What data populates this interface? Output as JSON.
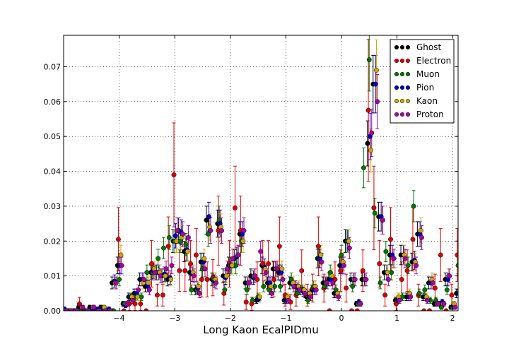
{
  "chart_data": {
    "type": "scatter",
    "title": "",
    "xlabel": "Long Kaon EcalPIDmu",
    "ylabel": "",
    "xlim": [
      -5.0,
      2.1
    ],
    "ylim": [
      0.0,
      0.079
    ],
    "x_ticks": [
      -4,
      -3,
      -2,
      -1,
      0,
      1,
      2
    ],
    "x_tick_labels": [
      "−4",
      "−3",
      "−2",
      "−1",
      "0",
      "1",
      "2"
    ],
    "y_ticks": [
      0.0,
      0.01,
      0.02,
      0.03,
      0.04,
      0.05,
      0.06,
      0.07
    ],
    "y_tick_labels": [
      "0.00",
      "0.01",
      "0.02",
      "0.03",
      "0.04",
      "0.05",
      "0.06",
      "0.07"
    ],
    "grid": true,
    "error_bars": true,
    "legend_position": "top-right",
    "bins_x": [
      -5.0,
      -4.9,
      -4.8,
      -4.7,
      -4.6,
      -4.5,
      -4.4,
      -4.3,
      -4.2,
      -4.1,
      -4.0,
      -3.9,
      -3.8,
      -3.7,
      -3.6,
      -3.5,
      -3.4,
      -3.3,
      -3.2,
      -3.1,
      -3.0,
      -2.9,
      -2.8,
      -2.7,
      -2.6,
      -2.5,
      -2.4,
      -2.3,
      -2.2,
      -2.1,
      -2.0,
      -1.9,
      -1.8,
      -1.7,
      -1.6,
      -1.5,
      -1.4,
      -1.3,
      -1.2,
      -1.1,
      -1.0,
      -0.9,
      -0.8,
      -0.7,
      -0.6,
      -0.5,
      -0.4,
      -0.3,
      -0.2,
      -0.1,
      0.0,
      0.1,
      0.2,
      0.3,
      0.4,
      0.5,
      0.6,
      0.7,
      0.8,
      0.9,
      1.0,
      1.1,
      1.2,
      1.3,
      1.4,
      1.5,
      1.6,
      1.7,
      1.8,
      1.9,
      2.0,
      2.1
    ],
    "series": [
      {
        "name": "Ghost",
        "color": "#000000",
        "offset": -0.03,
        "values": [
          0.001,
          0.0,
          0.0,
          0.001,
          0.0,
          0.001,
          0.0,
          0.001,
          0.0,
          0.008,
          0.013,
          0.002,
          0.004,
          0.005,
          0.009,
          0.007,
          0.011,
          0.011,
          0.01,
          0.009,
          0.02,
          0.023,
          0.017,
          0.011,
          0.006,
          0.014,
          0.026,
          0.009,
          0.025,
          0.01,
          0.013,
          0.015,
          0.022,
          0.008,
          0.01,
          0.003,
          0.013,
          0.008,
          0.012,
          0.011,
          0.003,
          0.008,
          0.007,
          0.006,
          0.004,
          0.006,
          0.015,
          0.008,
          0.009,
          0.005,
          0.013,
          0.02,
          0.009,
          0.002,
          0.009,
          0.048,
          0.065,
          0.027,
          0.011,
          0.016,
          0.003,
          0.016,
          0.004,
          0.014,
          0.022,
          0.004,
          0.008,
          0.002,
          0.002,
          0.009,
          0.001,
          0.005
        ]
      },
      {
        "name": "Electron",
        "color": "#dd0000",
        "offset": -0.015,
        "values": [
          0.0,
          0.0,
          0.0,
          0.002,
          0.0,
          0.0,
          0.0,
          0.0,
          0.0,
          0.0,
          0.0205,
          0.0,
          0.002,
          0.002,
          0.002,
          0.0,
          0.0135,
          0.0045,
          0.0045,
          0.0185,
          0.039,
          0.0115,
          0.0115,
          0.0135,
          0.016,
          0.009,
          0.009,
          0.0095,
          0.023,
          0.005,
          0.0135,
          0.0295,
          0.023,
          0.0025,
          0.002,
          0.009,
          0.0135,
          0.0135,
          0.009,
          0.0185,
          0.0045,
          0.0025,
          0.0045,
          0.0115,
          0.0045,
          0.0065,
          0.0185,
          0.0065,
          0.0,
          0.009,
          0.0115,
          0.0065,
          0.0,
          0.0,
          0.0115,
          0.0575,
          0.0295,
          0.0135,
          0.0045,
          0.0205,
          0.002,
          0.009,
          0.0115,
          0.0205,
          0.0045,
          0.0,
          0.0,
          0.0065,
          0.016,
          0.0,
          0.0045,
          0.016
        ]
      },
      {
        "name": "Muon",
        "color": "#007700",
        "offset": 0.0,
        "values": [
          0.0,
          0.0,
          0.0,
          0.0,
          0.0,
          0.0,
          0.0,
          0.0,
          0.0,
          0.0,
          0.009,
          0.002,
          0.004,
          0.004,
          0.004,
          0.011,
          0.011,
          0.015,
          0.018,
          0.021,
          0.02,
          0.02,
          0.019,
          0.006,
          0.006,
          0.012,
          0.022,
          0.009,
          0.026,
          0.006,
          0.013,
          0.013,
          0.02,
          0.006,
          0.003,
          0.004,
          0.007,
          0.006,
          0.007,
          0.007,
          0.003,
          0.009,
          0.005,
          0.006,
          0.003,
          0.007,
          0.015,
          0.007,
          0.011,
          0.006,
          0.016,
          0.02,
          0.007,
          0.002,
          0.041,
          0.072,
          0.028,
          0.008,
          0.017,
          0.011,
          0.003,
          0.004,
          0.013,
          0.03,
          0.005,
          0.006,
          0.003,
          0.003,
          0.001,
          0.006,
          0.001,
          0.013
        ]
      },
      {
        "name": "Pion",
        "color": "#0000cc",
        "offset": 0.015,
        "values": [
          0.0005,
          0.0,
          0.0,
          0.001,
          0.0,
          0.0005,
          0.0005,
          0.0005,
          0.0005,
          0.0085,
          0.013,
          0.0015,
          0.004,
          0.005,
          0.009,
          0.007,
          0.0115,
          0.011,
          0.0105,
          0.0095,
          0.0215,
          0.0225,
          0.0175,
          0.0105,
          0.0065,
          0.014,
          0.027,
          0.0085,
          0.025,
          0.0095,
          0.013,
          0.0155,
          0.022,
          0.008,
          0.0095,
          0.0035,
          0.0125,
          0.008,
          0.012,
          0.011,
          0.003,
          0.008,
          0.0065,
          0.0055,
          0.0045,
          0.006,
          0.015,
          0.008,
          0.009,
          0.005,
          0.013,
          0.02,
          0.009,
          0.0025,
          0.009,
          0.05,
          0.065,
          0.027,
          0.011,
          0.016,
          0.003,
          0.016,
          0.004,
          0.0145,
          0.022,
          0.004,
          0.008,
          0.002,
          0.0025,
          0.009,
          0.0015,
          0.005
        ]
      },
      {
        "name": "Kaon",
        "color": "#ccaa00",
        "offset": 0.03,
        "values": [
          0.0,
          0.0,
          0.0,
          0.001,
          0.0,
          0.001,
          0.0,
          0.001,
          0.0,
          0.008,
          0.016,
          0.002,
          0.004,
          0.004,
          0.008,
          0.008,
          0.012,
          0.011,
          0.01,
          0.009,
          0.02,
          0.021,
          0.017,
          0.011,
          0.007,
          0.015,
          0.024,
          0.009,
          0.024,
          0.01,
          0.013,
          0.016,
          0.02,
          0.008,
          0.01,
          0.004,
          0.012,
          0.007,
          0.012,
          0.012,
          0.004,
          0.008,
          0.007,
          0.006,
          0.005,
          0.007,
          0.016,
          0.008,
          0.01,
          0.005,
          0.014,
          0.02,
          0.009,
          0.002,
          0.009,
          0.046,
          0.069,
          0.026,
          0.011,
          0.015,
          0.004,
          0.016,
          0.005,
          0.014,
          0.023,
          0.004,
          0.009,
          0.002,
          0.002,
          0.01,
          0.002,
          0.006
        ]
      },
      {
        "name": "Proton",
        "color": "#aa00aa",
        "offset": 0.045,
        "values": [
          0.0,
          0.0,
          0.0,
          0.001,
          0.0,
          0.001,
          0.0,
          0.0,
          0.0,
          0.008,
          0.013,
          0.002,
          0.003,
          0.006,
          0.009,
          0.006,
          0.011,
          0.01,
          0.012,
          0.013,
          0.023,
          0.022,
          0.021,
          0.01,
          0.005,
          0.012,
          0.023,
          0.008,
          0.023,
          0.012,
          0.015,
          0.016,
          0.023,
          0.008,
          0.01,
          0.017,
          0.011,
          0.005,
          0.012,
          0.009,
          0.003,
          0.007,
          0.006,
          0.005,
          0.004,
          0.006,
          0.014,
          0.008,
          0.008,
          0.004,
          0.013,
          0.018,
          0.009,
          0.002,
          0.009,
          0.051,
          0.06,
          0.026,
          0.009,
          0.015,
          0.003,
          0.015,
          0.004,
          0.013,
          0.021,
          0.003,
          0.008,
          0.002,
          0.002,
          0.01,
          0.001,
          0.01
        ]
      }
    ]
  }
}
